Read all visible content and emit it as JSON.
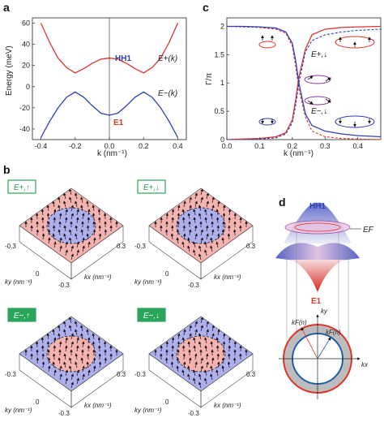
{
  "panels": {
    "a": {
      "label": "a",
      "ylabel": "Energy (meV)",
      "xlabel": "k (nm⁻¹)",
      "band_plus": "HH1",
      "band_minus": "E1",
      "curve_plus": "E+(k)",
      "curve_minus": "E−(k)"
    },
    "b": {
      "label": "b",
      "titles": [
        "E+,↑",
        "E+,↓",
        "E−,↑",
        "E−,↓"
      ],
      "ky": "ky (nm⁻¹)",
      "kx": "kx (nm⁻¹)",
      "tick_neg": "-0.3",
      "tick_zero": "0",
      "tick_pos": "0.3"
    },
    "c": {
      "label": "c",
      "ylabel": "Γ/π",
      "xlabel": "k (nm⁻¹)",
      "state_up": "E+,↓",
      "state_down": "E−,↓"
    },
    "d": {
      "label": "d",
      "hh1": "HH1",
      "e1": "E1",
      "ef": "EF",
      "ky": "ky",
      "kx": "kx",
      "kf_outer": "kF(n)",
      "kf_inner": "kF(n)"
    }
  },
  "colors": {
    "red": "#e0332a",
    "blue": "#2f3fb8",
    "pink": "#f5b3b0",
    "lavender": "#aeb0ee",
    "green": "#2aa65a"
  },
  "chart_data": [
    {
      "type": "line",
      "title": "",
      "xlabel": "k (nm⁻¹)",
      "ylabel": "Energy (meV)",
      "xlim": [
        -0.45,
        0.45
      ],
      "ylim": [
        -50,
        65
      ],
      "xticks": [
        -0.4,
        -0.2,
        0.0,
        0.2,
        0.4
      ],
      "yticks": [
        -40,
        -20,
        0,
        20,
        40,
        60
      ],
      "series": [
        {
          "name": "E+(k)",
          "x": [
            -0.4,
            -0.35,
            -0.3,
            -0.25,
            -0.2,
            -0.15,
            -0.1,
            -0.05,
            0,
            0.05,
            0.1,
            0.15,
            0.2,
            0.25,
            0.3,
            0.35,
            0.4
          ],
          "values": [
            60,
            42,
            27,
            18,
            13,
            17,
            22,
            26,
            27,
            26,
            22,
            17,
            13,
            18,
            27,
            42,
            60
          ]
        },
        {
          "name": "E−(k)",
          "x": [
            -0.4,
            -0.35,
            -0.3,
            -0.25,
            -0.2,
            -0.15,
            -0.1,
            -0.05,
            0,
            0.05,
            0.1,
            0.15,
            0.2,
            0.25,
            0.3,
            0.35,
            0.4
          ],
          "values": [
            -48,
            -33,
            -20,
            -10,
            -5,
            -10,
            -18,
            -25,
            -27,
            -25,
            -18,
            -10,
            -5,
            -10,
            -20,
            -33,
            -48
          ]
        }
      ]
    },
    {
      "type": "line",
      "title": "",
      "xlabel": "k (nm⁻¹)",
      "ylabel": "Γ/π",
      "xlim": [
        0.0,
        0.47
      ],
      "ylim": [
        0.0,
        2.15
      ],
      "xticks": [
        0.0,
        0.1,
        0.2,
        0.3,
        0.4
      ],
      "yticks": [
        0.0,
        0.5,
        1.0,
        1.5,
        2.0
      ],
      "series": [
        {
          "name": "E+,↓",
          "x": [
            0,
            0.05,
            0.1,
            0.15,
            0.18,
            0.2,
            0.21,
            0.22,
            0.24,
            0.26,
            0.3,
            0.35,
            0.4,
            0.47
          ],
          "values": [
            0,
            0.01,
            0.02,
            0.05,
            0.12,
            0.35,
            0.7,
            1.1,
            1.6,
            1.85,
            1.95,
            1.98,
            1.99,
            2.0
          ]
        },
        {
          "name": "E−,↓",
          "x": [
            0,
            0.05,
            0.1,
            0.15,
            0.18,
            0.2,
            0.21,
            0.22,
            0.24,
            0.26,
            0.3,
            0.35,
            0.4,
            0.47
          ],
          "values": [
            2.0,
            2.0,
            1.99,
            1.97,
            1.9,
            1.7,
            1.4,
            1.0,
            0.45,
            0.25,
            0.15,
            0.1,
            0.07,
            0.05
          ]
        }
      ]
    }
  ]
}
